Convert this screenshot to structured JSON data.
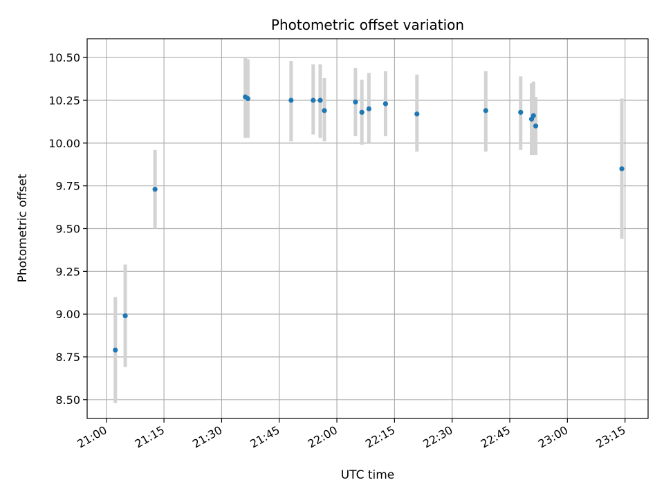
{
  "chart_data": {
    "type": "scatter",
    "title": "Photometric offset variation",
    "xlabel": "UTC time",
    "ylabel": "Photometric offset",
    "grid": true,
    "xlim": [
      "20:55",
      "23:21"
    ],
    "ylim": [
      8.39,
      10.61
    ],
    "xticks": [
      "21:00",
      "21:15",
      "21:30",
      "21:45",
      "22:00",
      "22:15",
      "22:30",
      "22:45",
      "23:00",
      "23:15"
    ],
    "yticks": [
      "8.50",
      "8.75",
      "9.00",
      "9.25",
      "9.50",
      "9.75",
      "10.00",
      "10.25",
      "10.50"
    ],
    "colors": {
      "point": "#1f77b4",
      "errorbar": "#d3d3d3"
    },
    "points": [
      {
        "x": "21:02:20",
        "y": 8.79,
        "low": 8.48,
        "high": 9.1
      },
      {
        "x": "21:04:55",
        "y": 8.99,
        "low": 8.69,
        "high": 9.29
      },
      {
        "x": "21:12:40",
        "y": 9.73,
        "low": 9.5,
        "high": 9.96
      },
      {
        "x": "21:36:10",
        "y": 10.27,
        "low": 10.03,
        "high": 10.5
      },
      {
        "x": "21:36:50",
        "y": 10.26,
        "low": 10.03,
        "high": 10.49
      },
      {
        "x": "21:48:05",
        "y": 10.25,
        "low": 10.01,
        "high": 10.48
      },
      {
        "x": "21:53:50",
        "y": 10.25,
        "low": 10.05,
        "high": 10.46
      },
      {
        "x": "21:55:40",
        "y": 10.25,
        "low": 10.03,
        "high": 10.46
      },
      {
        "x": "21:56:45",
        "y": 10.19,
        "low": 10.01,
        "high": 10.38
      },
      {
        "x": "22:04:50",
        "y": 10.24,
        "low": 10.04,
        "high": 10.44
      },
      {
        "x": "22:06:30",
        "y": 10.18,
        "low": 9.99,
        "high": 10.37
      },
      {
        "x": "22:08:20",
        "y": 10.2,
        "low": 10.0,
        "high": 10.41
      },
      {
        "x": "22:12:40",
        "y": 10.23,
        "low": 10.04,
        "high": 10.42
      },
      {
        "x": "22:20:50",
        "y": 10.17,
        "low": 9.95,
        "high": 10.4
      },
      {
        "x": "22:38:45",
        "y": 10.19,
        "low": 9.95,
        "high": 10.42
      },
      {
        "x": "22:47:50",
        "y": 10.18,
        "low": 9.96,
        "high": 10.39
      },
      {
        "x": "22:50:40",
        "y": 10.14,
        "low": 9.93,
        "high": 10.35
      },
      {
        "x": "22:51:10",
        "y": 10.16,
        "low": 9.93,
        "high": 10.36
      },
      {
        "x": "22:51:45",
        "y": 10.1,
        "low": 9.93,
        "high": 10.27
      },
      {
        "x": "23:14:10",
        "y": 9.85,
        "low": 9.44,
        "high": 10.26
      }
    ]
  }
}
